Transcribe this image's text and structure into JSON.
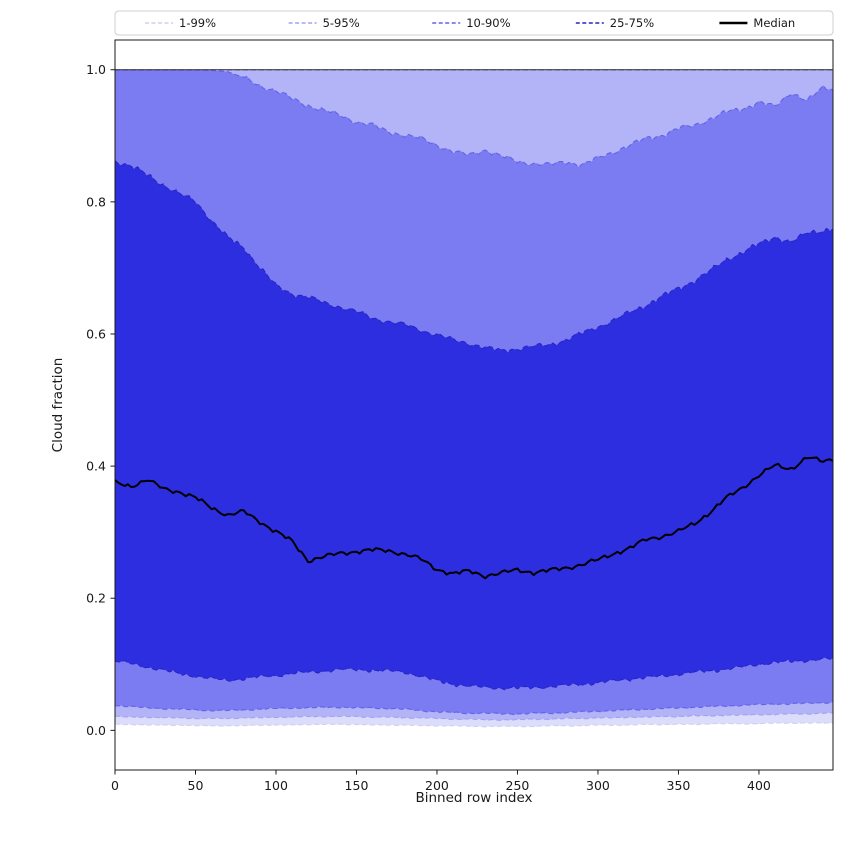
{
  "figure": {
    "background": "#ffffff"
  },
  "chart_data": {
    "type": "area",
    "title": "",
    "xlabel": "Binned row index",
    "ylabel": "Cloud fraction",
    "xlim": [
      0,
      446
    ],
    "ylim": [
      -0.06,
      1.045
    ],
    "grid": false,
    "x_ticks": [
      0,
      50,
      100,
      150,
      200,
      250,
      300,
      350,
      400
    ],
    "y_ticks": [
      0.0,
      0.2,
      0.4,
      0.6,
      0.8,
      1.0
    ],
    "y_tick_labels": [
      "0.0",
      "0.2",
      "0.4",
      "0.6",
      "0.8",
      "1.0"
    ],
    "legend": {
      "position": "top",
      "entries": [
        {
          "label": "1-99%",
          "color": "#cfcff6",
          "style": "dashed"
        },
        {
          "label": "5-95%",
          "color": "#a2a2f2",
          "style": "dashed"
        },
        {
          "label": "10-90%",
          "color": "#6262ea",
          "style": "dashed"
        },
        {
          "label": "25-75%",
          "color": "#2525c4",
          "style": "dashed"
        },
        {
          "label": "Median",
          "color": "#000000",
          "style": "solid"
        }
      ]
    },
    "x": [
      0,
      10,
      20,
      30,
      40,
      50,
      60,
      70,
      80,
      90,
      100,
      110,
      120,
      130,
      140,
      150,
      160,
      170,
      180,
      190,
      200,
      210,
      220,
      230,
      240,
      250,
      260,
      270,
      280,
      290,
      300,
      310,
      320,
      330,
      340,
      350,
      360,
      370,
      380,
      390,
      400,
      410,
      420,
      430,
      440,
      446
    ],
    "series": {
      "p1": [
        0.009,
        0.009,
        0.008,
        0.008,
        0.008,
        0.007,
        0.007,
        0.007,
        0.007,
        0.008,
        0.008,
        0.008,
        0.009,
        0.009,
        0.009,
        0.009,
        0.008,
        0.008,
        0.008,
        0.007,
        0.007,
        0.007,
        0.006,
        0.006,
        0.006,
        0.006,
        0.006,
        0.007,
        0.007,
        0.007,
        0.008,
        0.008,
        0.008,
        0.009,
        0.009,
        0.009,
        0.009,
        0.01,
        0.01,
        0.01,
        0.01,
        0.011,
        0.011,
        0.011,
        0.011,
        0.011
      ],
      "p5": [
        0.021,
        0.02,
        0.02,
        0.019,
        0.019,
        0.018,
        0.018,
        0.018,
        0.019,
        0.019,
        0.02,
        0.02,
        0.021,
        0.021,
        0.021,
        0.021,
        0.02,
        0.02,
        0.019,
        0.019,
        0.018,
        0.017,
        0.017,
        0.016,
        0.016,
        0.016,
        0.017,
        0.017,
        0.018,
        0.018,
        0.019,
        0.019,
        0.02,
        0.02,
        0.021,
        0.021,
        0.022,
        0.022,
        0.023,
        0.023,
        0.024,
        0.024,
        0.025,
        0.025,
        0.026,
        0.026
      ],
      "p10": [
        0.038,
        0.036,
        0.034,
        0.033,
        0.032,
        0.031,
        0.03,
        0.03,
        0.031,
        0.032,
        0.033,
        0.034,
        0.034,
        0.035,
        0.035,
        0.034,
        0.034,
        0.033,
        0.032,
        0.03,
        0.028,
        0.027,
        0.026,
        0.026,
        0.025,
        0.025,
        0.026,
        0.026,
        0.027,
        0.028,
        0.029,
        0.03,
        0.031,
        0.032,
        0.033,
        0.034,
        0.035,
        0.036,
        0.037,
        0.038,
        0.039,
        0.04,
        0.04,
        0.041,
        0.042,
        0.042
      ],
      "p25": [
        0.105,
        0.101,
        0.096,
        0.091,
        0.086,
        0.082,
        0.078,
        0.076,
        0.078,
        0.081,
        0.083,
        0.086,
        0.088,
        0.09,
        0.092,
        0.092,
        0.091,
        0.09,
        0.088,
        0.082,
        0.075,
        0.07,
        0.067,
        0.065,
        0.064,
        0.064,
        0.065,
        0.066,
        0.068,
        0.07,
        0.072,
        0.075,
        0.078,
        0.08,
        0.082,
        0.085,
        0.088,
        0.09,
        0.093,
        0.096,
        0.1,
        0.103,
        0.104,
        0.106,
        0.108,
        0.108
      ],
      "median": [
        0.375,
        0.37,
        0.379,
        0.366,
        0.361,
        0.352,
        0.337,
        0.326,
        0.331,
        0.316,
        0.301,
        0.286,
        0.257,
        0.263,
        0.268,
        0.271,
        0.273,
        0.272,
        0.267,
        0.259,
        0.244,
        0.237,
        0.241,
        0.234,
        0.238,
        0.243,
        0.239,
        0.242,
        0.246,
        0.251,
        0.258,
        0.268,
        0.276,
        0.289,
        0.294,
        0.301,
        0.313,
        0.331,
        0.352,
        0.368,
        0.386,
        0.401,
        0.396,
        0.413,
        0.407,
        0.411
      ],
      "p75": [
        0.862,
        0.854,
        0.841,
        0.826,
        0.812,
        0.801,
        0.772,
        0.746,
        0.731,
        0.701,
        0.673,
        0.661,
        0.656,
        0.647,
        0.641,
        0.634,
        0.624,
        0.619,
        0.614,
        0.606,
        0.599,
        0.591,
        0.586,
        0.579,
        0.575,
        0.578,
        0.581,
        0.584,
        0.591,
        0.601,
        0.611,
        0.621,
        0.633,
        0.644,
        0.657,
        0.669,
        0.681,
        0.696,
        0.713,
        0.724,
        0.736,
        0.747,
        0.739,
        0.753,
        0.757,
        0.76
      ],
      "p90": [
        1.0,
        1.0,
        1.0,
        1.0,
        1.0,
        1.0,
        0.999,
        0.997,
        0.988,
        0.976,
        0.968,
        0.956,
        0.946,
        0.938,
        0.931,
        0.921,
        0.916,
        0.906,
        0.901,
        0.896,
        0.886,
        0.876,
        0.871,
        0.879,
        0.869,
        0.861,
        0.858,
        0.856,
        0.861,
        0.856,
        0.866,
        0.876,
        0.886,
        0.896,
        0.901,
        0.911,
        0.916,
        0.926,
        0.936,
        0.941,
        0.951,
        0.944,
        0.966,
        0.953,
        0.973,
        0.971
      ],
      "p95": 0.999,
      "p99": 1.0
    },
    "bands": [
      {
        "name": "1-99",
        "lower": "p1",
        "upper": "p99",
        "fill": "#dcdcfb",
        "edge": "#cfcff6"
      },
      {
        "name": "5-95",
        "lower": "p5",
        "upper": "p95",
        "fill": "#b3b3f7",
        "edge": "#a2a2f2"
      },
      {
        "name": "10-90",
        "lower": "p10",
        "upper": "p90",
        "fill": "#7b7bf2",
        "edge": "#6262ea"
      },
      {
        "name": "25-75",
        "lower": "p25",
        "upper": "p75",
        "fill": "#2e2ee1",
        "edge": "#2525c4"
      }
    ],
    "median_style": {
      "color": "#000000",
      "width": 2
    }
  }
}
